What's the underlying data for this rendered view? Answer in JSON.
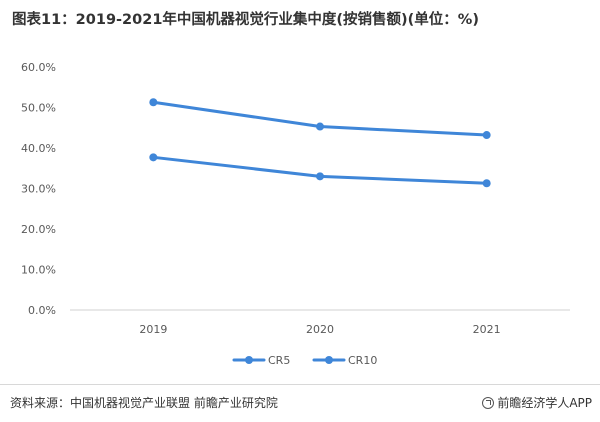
{
  "chart_data": {
    "type": "line",
    "title": "图表11：2019-2021年中国机器视觉行业集中度(按销售额)(单位：%)",
    "categories": [
      "2019",
      "2020",
      "2021"
    ],
    "series": [
      {
        "name": "CR5",
        "values": [
          37.7,
          33.0,
          31.3
        ],
        "color": "#3f86d8"
      },
      {
        "name": "CR10",
        "values": [
          51.3,
          45.3,
          43.2
        ],
        "color": "#3f86d8"
      }
    ],
    "yticks": [
      "0.0%",
      "10.0%",
      "20.0%",
      "30.0%",
      "40.0%",
      "50.0%",
      "60.0%"
    ],
    "ylim": [
      0,
      60
    ],
    "grid": false,
    "legend": "bottom"
  },
  "footer": {
    "source": "资料来源：中国机器视觉产业联盟 前瞻产业研究院",
    "brand": "前瞻经济学人APP",
    "brand_icon": "qianzhan-logo-icon"
  }
}
